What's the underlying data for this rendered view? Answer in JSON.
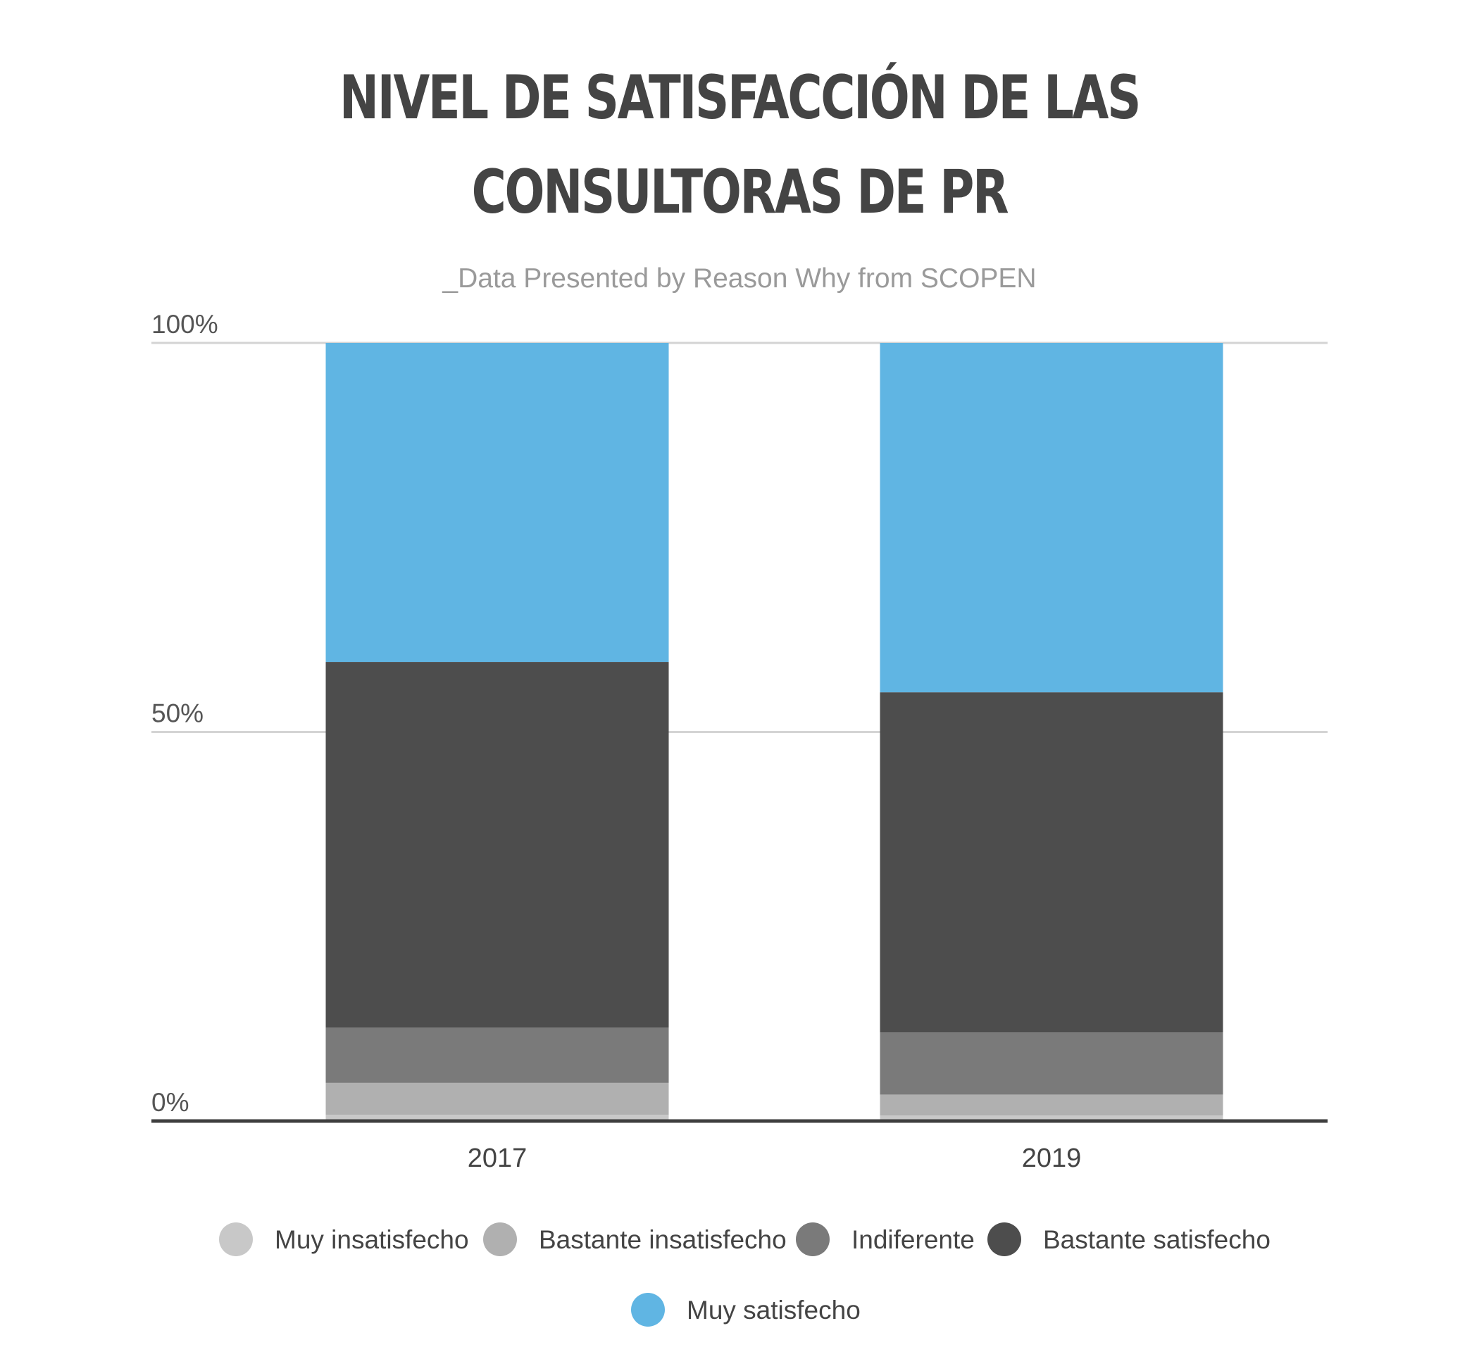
{
  "chart_data": {
    "type": "bar",
    "stacked": true,
    "title": [
      "NIVEL DE SATISFACCIÓN DE LAS",
      "CONSULTORAS DE PR"
    ],
    "subtitle": "_Data Presented by Reason Why from SCOPEN",
    "categories": [
      "2017",
      "2019"
    ],
    "yticks": [
      "0%",
      "50%",
      "100%"
    ],
    "ylim": [
      0,
      100
    ],
    "grid": true,
    "legend_position": "bottom",
    "series": [
      {
        "name": "Muy insatisfecho",
        "color": "#c8c8c8",
        "values": [
          0.8,
          0.7
        ]
      },
      {
        "name": "Bastante insatisfecho",
        "color": "#b0b0b0",
        "values": [
          4.1,
          2.7
        ]
      },
      {
        "name": "Indiferente",
        "color": "#7a7a7a",
        "values": [
          7.1,
          8.0
        ]
      },
      {
        "name": "Bastante satisfecho",
        "color": "#4d4d4d",
        "values": [
          47.0,
          43.7
        ]
      },
      {
        "name": "Muy satisfecho",
        "color": "#60b5e3",
        "values": [
          41.0,
          44.9
        ]
      }
    ]
  }
}
